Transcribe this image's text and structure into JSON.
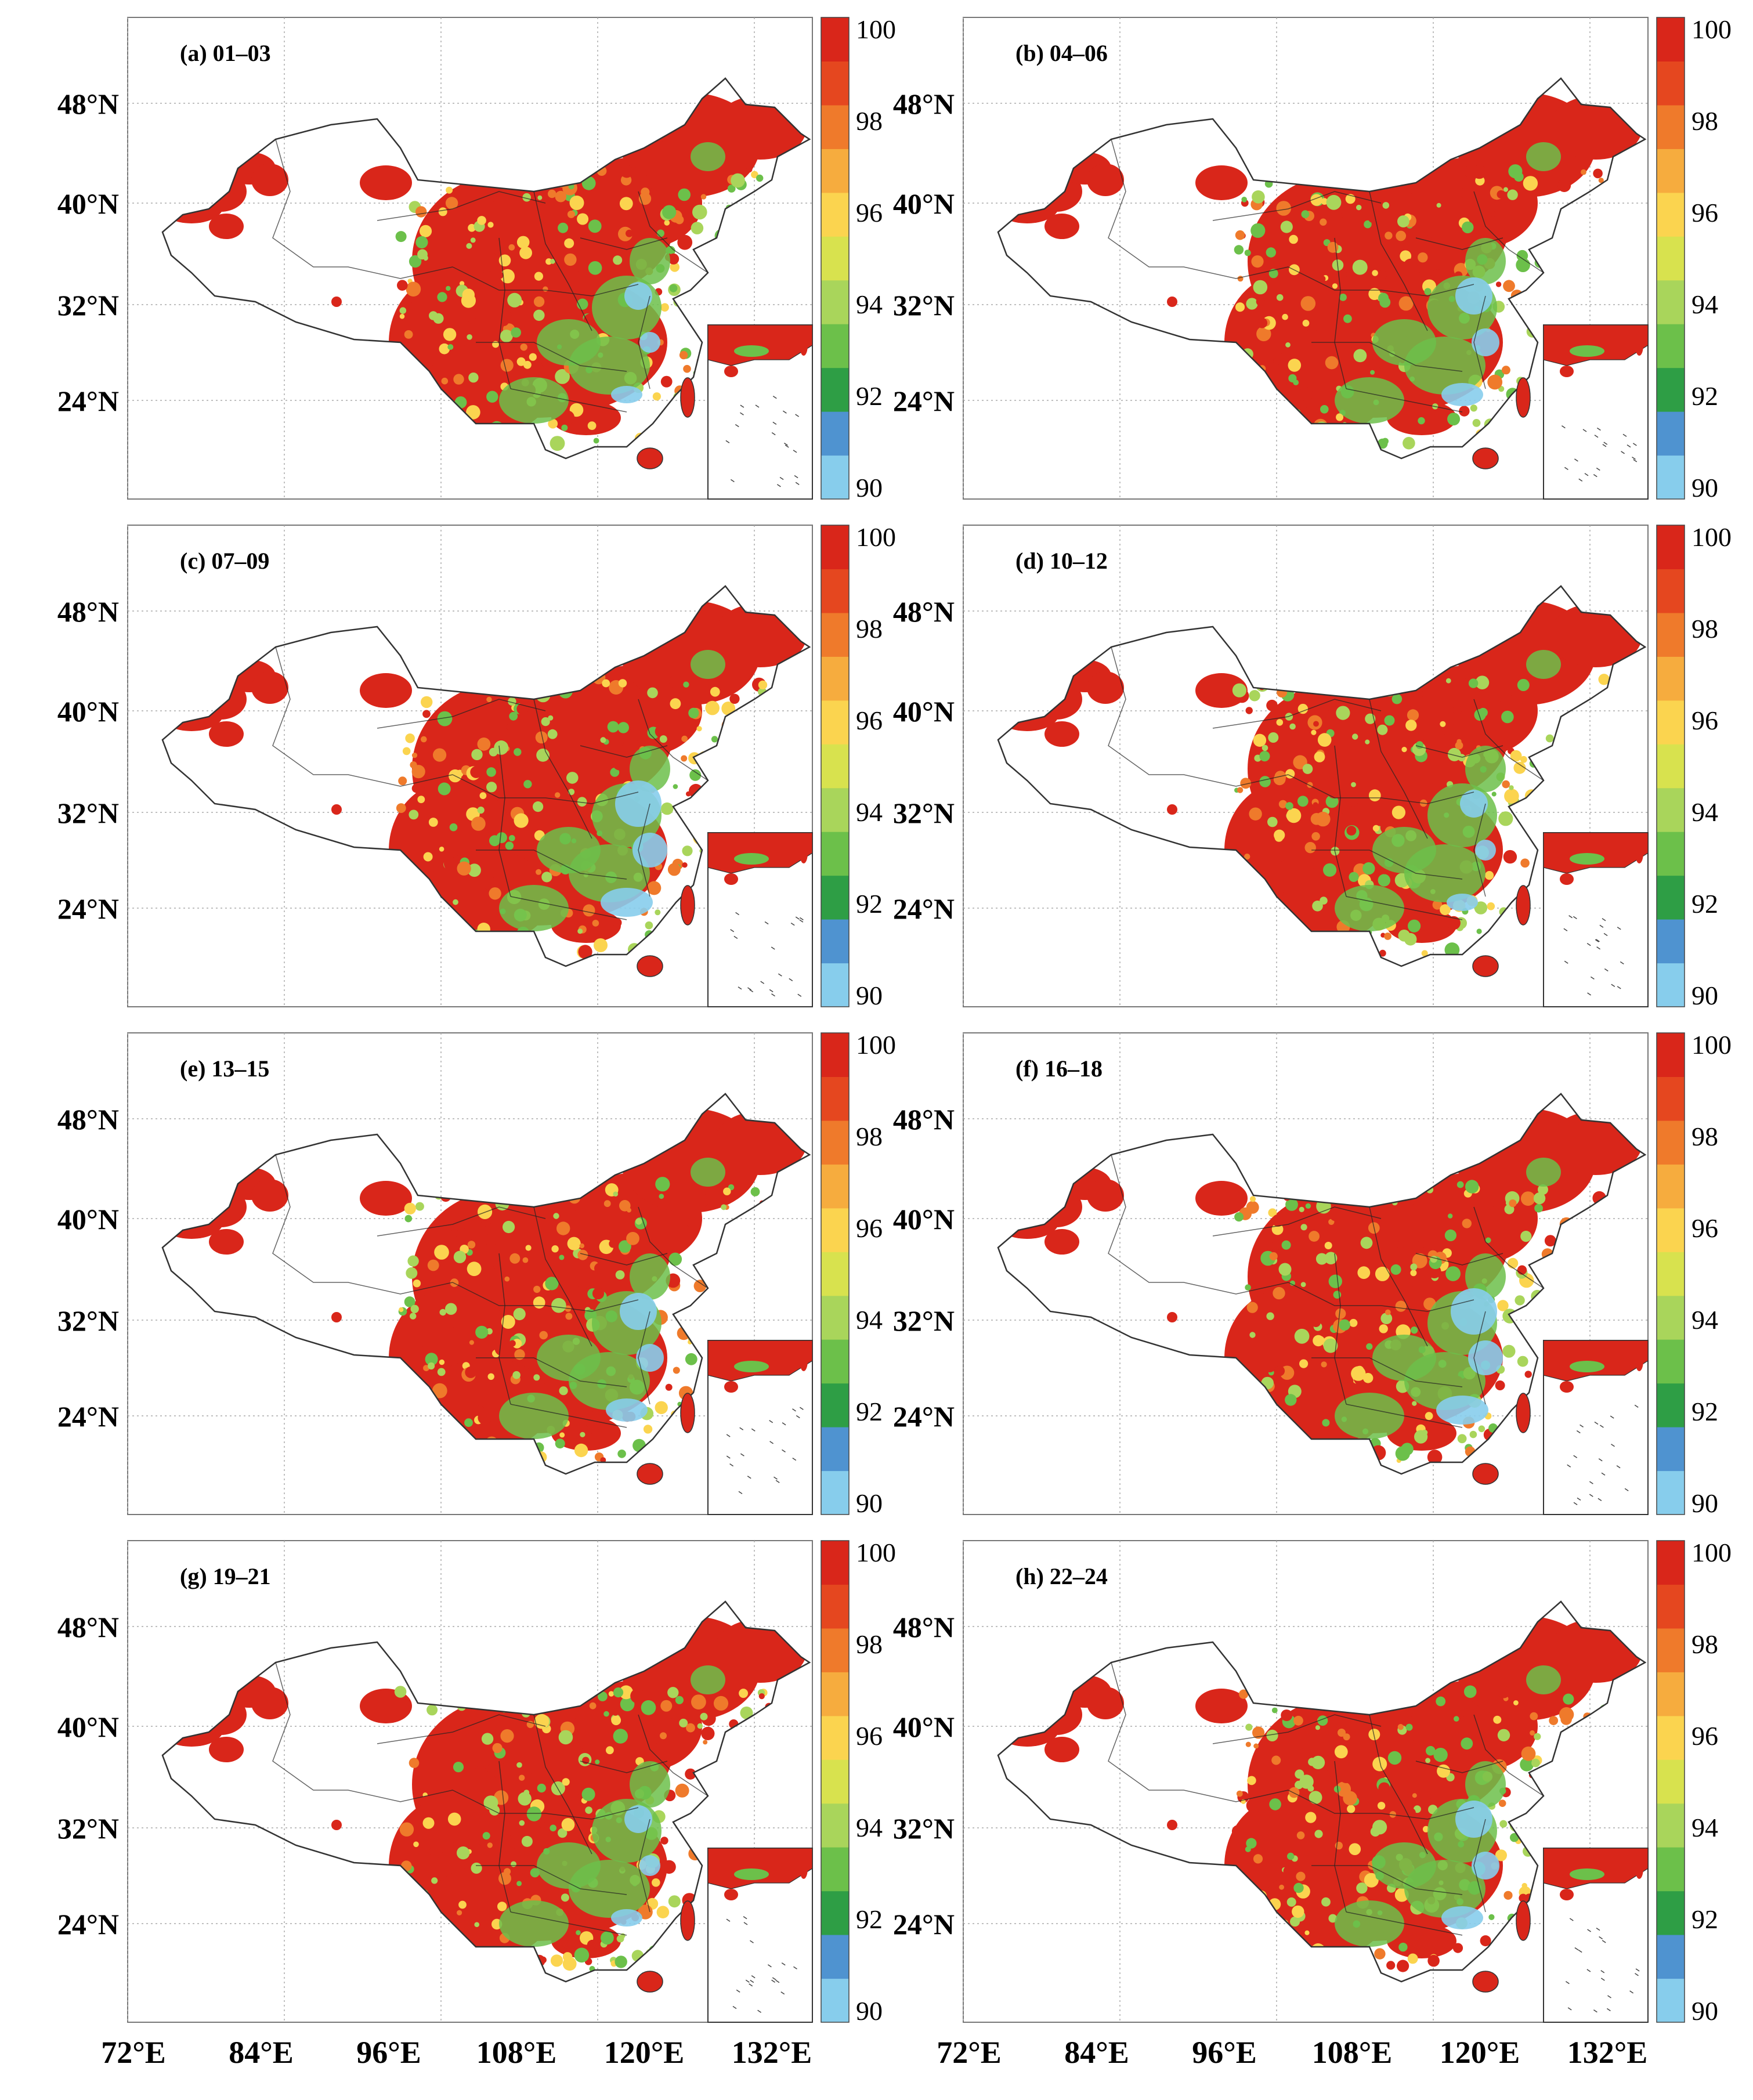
{
  "figure": {
    "panels": [
      {
        "id": "a",
        "label": "(a) 01–03"
      },
      {
        "id": "b",
        "label": "(b) 04–06"
      },
      {
        "id": "c",
        "label": "(c) 07–09"
      },
      {
        "id": "d",
        "label": "(d) 10–12"
      },
      {
        "id": "e",
        "label": "(e) 13–15"
      },
      {
        "id": "f",
        "label": "(f) 16–18"
      },
      {
        "id": "g",
        "label": "(g) 19–21"
      },
      {
        "id": "h",
        "label": "(h) 22–24"
      }
    ],
    "lat_ticks": [
      "48°N",
      "40°N",
      "32°N",
      "24°N"
    ],
    "lon_ticks": [
      "72°E",
      "84°E",
      "96°E",
      "108°E",
      "120°E",
      "132°E"
    ],
    "colorbar": {
      "tick_labels": [
        "100",
        "98",
        "96",
        "94",
        "92",
        "90"
      ],
      "colors": [
        "#87cdec",
        "#4f93d0",
        "#2e9e45",
        "#6cc04a",
        "#a9d55b",
        "#d8e24e",
        "#fbd44f",
        "#f6ac3e",
        "#ef7a2b",
        "#e5471f",
        "#d9261a"
      ]
    },
    "colors": {
      "high": "#d9261a",
      "mid": "#ef7a2b",
      "low_green": "#6cc04a",
      "low_blue": "#87cdec",
      "border": "#333333"
    }
  }
}
